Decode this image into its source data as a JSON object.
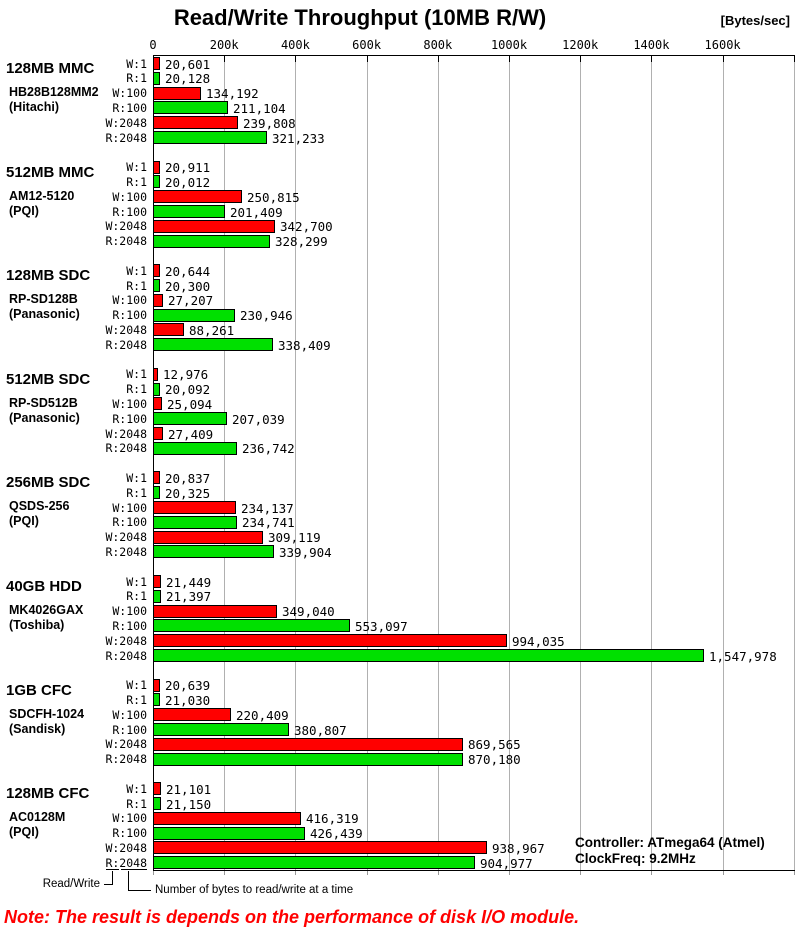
{
  "title": "Read/Write Throughput (10MB R/W)",
  "unit_label": "[Bytes/sec]",
  "note": "Note: The result is depends on the performance of disk I/O module.",
  "info": {
    "controller": "Controller: ATmega64 (Atmel)",
    "clock": "ClockFreq: 9.2MHz"
  },
  "legend": {
    "read_write": "Read/Write",
    "bytes_at_a_time": "Number of bytes to read/write at a time"
  },
  "colors": {
    "write_bar": "#ff0000",
    "read_bar": "#00e000",
    "gridline": "#b0b0b0",
    "note_text": "#ff0000"
  },
  "chart_data": {
    "type": "bar",
    "orientation": "horizontal",
    "title": "Read/Write Throughput (10MB R/W)",
    "xlabel": "[Bytes/sec]",
    "xlim": [
      0,
      1800000
    ],
    "grid": true,
    "tick_interval": 200000,
    "tick_labels": [
      "0",
      "200k",
      "400k",
      "600k",
      "800k",
      "1000k",
      "1200k",
      "1400k",
      "1600k"
    ],
    "bar_labels": [
      "W:1",
      "R:1",
      "W:100",
      "R:100",
      "W:2048",
      "R:2048"
    ],
    "series_note": "rows alternate Write (red) / Read (green)",
    "groups": [
      {
        "name": "128MB MMC",
        "model": "HB28B128MM2",
        "maker": "(Hitachi)",
        "values": [
          20601,
          20128,
          134192,
          211104,
          239808,
          321233
        ]
      },
      {
        "name": "512MB MMC",
        "model": "AM12-5120",
        "maker": "(PQI)",
        "values": [
          20911,
          20012,
          250815,
          201409,
          342700,
          328299
        ]
      },
      {
        "name": "128MB SDC",
        "model": "RP-SD128B",
        "maker": "(Panasonic)",
        "values": [
          20644,
          20300,
          27207,
          230946,
          88261,
          338409
        ]
      },
      {
        "name": "512MB SDC",
        "model": "RP-SD512B",
        "maker": "(Panasonic)",
        "values": [
          12976,
          20092,
          25094,
          207039,
          27409,
          236742
        ]
      },
      {
        "name": "256MB SDC",
        "model": "QSDS-256",
        "maker": "(PQI)",
        "values": [
          20837,
          20325,
          234137,
          234741,
          309119,
          339904
        ]
      },
      {
        "name": "40GB HDD",
        "model": "MK4026GAX",
        "maker": "(Toshiba)",
        "values": [
          21449,
          21397,
          349040,
          553097,
          994035,
          1547978
        ]
      },
      {
        "name": "1GB CFC",
        "model": "SDCFH-1024",
        "maker": "(Sandisk)",
        "values": [
          20639,
          21030,
          220409,
          380807,
          869565,
          870180
        ]
      },
      {
        "name": "128MB CFC",
        "model": "AC0128M",
        "maker": "(PQI)",
        "values": [
          21101,
          21150,
          416319,
          426439,
          938967,
          904977
        ]
      }
    ]
  }
}
